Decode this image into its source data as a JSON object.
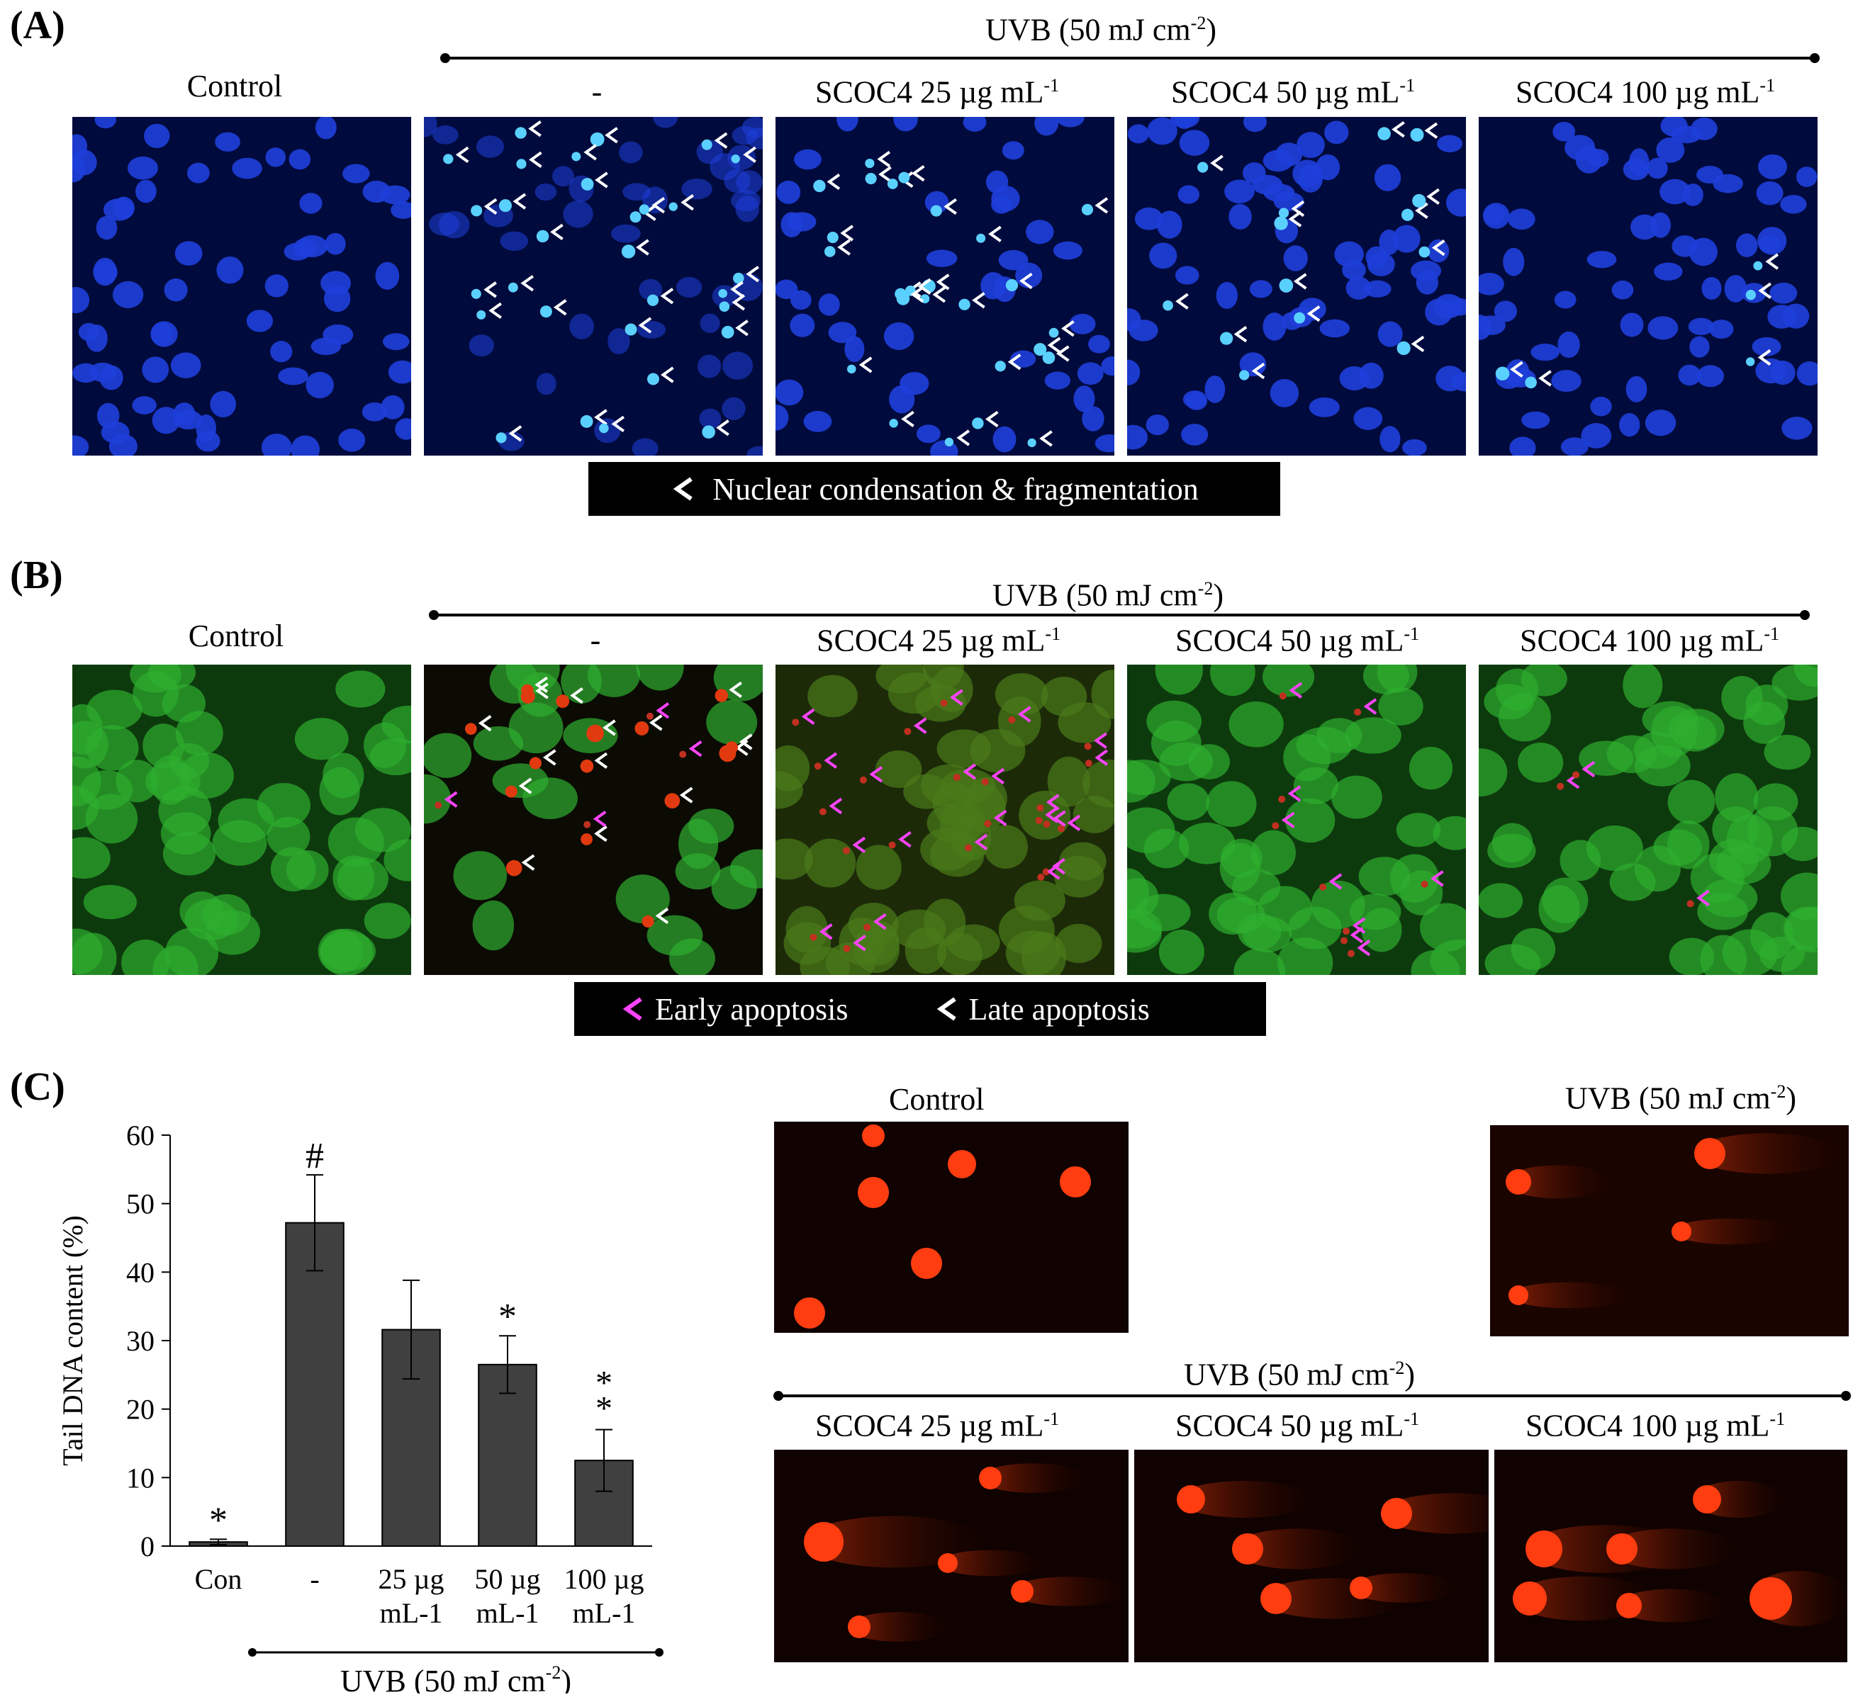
{
  "panel_a": {
    "label": "(A)",
    "uvb_label": "UVB (50 mJ cm",
    "uvb_unit_sup": "-2",
    "uvb_close": ")",
    "headers": {
      "control": "Control",
      "dash": "-",
      "s25": "SCOC4 25 µg mL",
      "s50": "SCOC4 50 µg mL",
      "s100": "SCOC4 100 µg mL",
      "sup": "-1"
    },
    "legend": "Nuclear condensation & fragmentation",
    "colors": {
      "bg": "#000a3c",
      "nucleus": "#1f3fdc",
      "condensed": "#5ad0ff"
    }
  },
  "panel_b": {
    "label": "(B)",
    "uvb_label": "UVB (50 mJ cm",
    "uvb_unit_sup": "-2",
    "uvb_close": ")",
    "headers": {
      "control": "Control",
      "dash": "-",
      "s25": "SCOC4 25 µg mL",
      "s50": "SCOC4 50 µg mL",
      "s100": "SCOC4 100 µg mL",
      "sup": "-1"
    },
    "legend_early": "Early apoptosis",
    "legend_late": "Late apoptosis",
    "colors": {
      "green": "#2fae2f",
      "early_arrow": "#ff44ff",
      "late_arrow": "#ffffff",
      "red": "#e23a10"
    }
  },
  "panel_c": {
    "label": "(C)",
    "control_title": "Control",
    "uvb_title": "UVB (50 mJ cm",
    "uvb_sup": "-2",
    "uvb_close": ")",
    "group_uvb": "UVB (50 mJ cm",
    "group_uvb_sup": "-2",
    "group_uvb_close": ")",
    "comet_headers": {
      "s25": "SCOC4 25 µg mL",
      "s50": "SCOC4 50 µg mL",
      "s100": "SCOC4 100 µg mL",
      "sup": "-1"
    },
    "chart_group_label": "UVB (50 mJ cm",
    "chart_group_sup": "-2",
    "chart_group_close": ")"
  },
  "chart_data": {
    "type": "bar",
    "ylabel": "Tail DNA content (%)",
    "xlabel": "",
    "ylim": [
      0,
      60
    ],
    "yticks": [
      0,
      10,
      20,
      30,
      40,
      50,
      60
    ],
    "categories": [
      [
        "Con"
      ],
      [
        "-"
      ],
      [
        "25 µg",
        "mL-1"
      ],
      [
        "50 µg",
        "mL-1"
      ],
      [
        "100 µg",
        "mL-1"
      ]
    ],
    "values": [
      0.6,
      47.2,
      31.6,
      26.5,
      12.5
    ],
    "errors": [
      0.4,
      7.0,
      7.2,
      4.2,
      4.5
    ],
    "annotations": [
      "*",
      "#",
      "",
      "*",
      "**"
    ],
    "bar_color": "#404040",
    "grid": false
  }
}
